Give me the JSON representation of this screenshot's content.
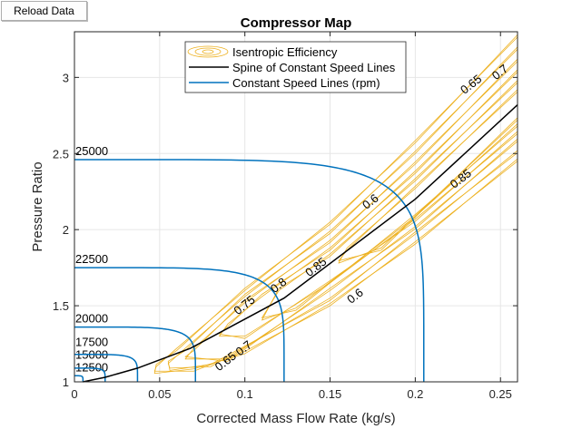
{
  "toolbar": {
    "reload_label": "Reload Data"
  },
  "chart_data": {
    "type": "line",
    "title": "Compressor Map",
    "xlabel": "Corrected Mass Flow Rate (kg/s)",
    "ylabel": "Pressure Ratio",
    "xlim": [
      0,
      0.26
    ],
    "ylim": [
      1,
      3.3
    ],
    "xticks": [
      0,
      0.05,
      0.1,
      0.15,
      0.2,
      0.25
    ],
    "xtick_labels": [
      "0",
      "0.05",
      "0.1",
      "0.15",
      "0.2",
      "0.25"
    ],
    "yticks": [
      1,
      1.5,
      2,
      2.5,
      3
    ],
    "ytick_labels": [
      "1",
      "1.5",
      "2",
      "2.5",
      "3"
    ],
    "grid": true,
    "legend": {
      "placement": "top-center",
      "entries": [
        "Isentropic Efficiency",
        "Spine of Constant Speed Lines",
        "Constant Speed Lines (rpm)"
      ]
    },
    "colors": {
      "efficiency": "#EDB120",
      "spine": "#000000",
      "speed": "#0072BD"
    },
    "speed_lines": [
      {
        "label": "12500",
        "pr_at_zero_flow": 1.04,
        "max_flow": 0.005
      },
      {
        "label": "15000",
        "pr_at_zero_flow": 1.09,
        "max_flow": 0.018
      },
      {
        "label": "17500",
        "pr_at_zero_flow": 1.18,
        "max_flow": 0.037
      },
      {
        "label": "20000",
        "pr_at_zero_flow": 1.36,
        "max_flow": 0.071
      },
      {
        "label": "22500",
        "pr_at_zero_flow": 1.75,
        "max_flow": 0.123
      },
      {
        "label": "25000",
        "pr_at_zero_flow": 2.46,
        "max_flow": 0.205
      }
    ],
    "spine": {
      "x": [
        0.005,
        0.018,
        0.037,
        0.068,
        0.123,
        0.2,
        0.26
      ],
      "y": [
        1.0,
        1.03,
        1.09,
        1.22,
        1.55,
        2.2,
        2.82
      ]
    },
    "efficiency_contours": [
      {
        "level": 0.6,
        "x": [
          0.26,
          0.2,
          0.15,
          0.1,
          0.06,
          0.048,
          0.047,
          0.07,
          0.1,
          0.15,
          0.2,
          0.26
        ],
        "y": [
          3.28,
          2.57,
          2.05,
          1.6,
          1.22,
          1.1,
          1.07,
          1.07,
          1.2,
          1.5,
          1.92,
          2.45
        ]
      },
      {
        "level": 0.65,
        "x": [
          0.26,
          0.2,
          0.15,
          0.1,
          0.065,
          0.055,
          0.056,
          0.08,
          0.15,
          0.2,
          0.26
        ],
        "y": [
          3.2,
          2.5,
          1.99,
          1.56,
          1.22,
          1.12,
          1.09,
          1.1,
          1.55,
          1.97,
          2.52
        ]
      },
      {
        "level": 0.7,
        "x": [
          0.26,
          0.2,
          0.15,
          0.1,
          0.07,
          0.065,
          0.09,
          0.15,
          0.2,
          0.26
        ],
        "y": [
          3.12,
          2.43,
          1.93,
          1.52,
          1.22,
          1.15,
          1.15,
          1.6,
          2.02,
          2.58
        ]
      },
      {
        "level": 0.75,
        "x": [
          0.26,
          0.2,
          0.15,
          0.11,
          0.09,
          0.085,
          0.1,
          0.15,
          0.2,
          0.26
        ],
        "y": [
          3.05,
          2.37,
          1.88,
          1.56,
          1.38,
          1.3,
          1.3,
          1.65,
          2.07,
          2.63
        ]
      },
      {
        "level": 0.8,
        "x": [
          0.26,
          0.2,
          0.15,
          0.12,
          0.11,
          0.13,
          0.2,
          0.26
        ],
        "y": [
          2.98,
          2.32,
          1.84,
          1.6,
          1.42,
          1.47,
          2.1,
          2.68
        ]
      },
      {
        "level": 0.85,
        "x": [
          0.26,
          0.2,
          0.16,
          0.155,
          0.18,
          0.26
        ],
        "y": [
          2.92,
          2.27,
          1.88,
          1.78,
          1.88,
          2.72
        ]
      }
    ],
    "contour_labels": [
      {
        "text": "0.6",
        "x": 0.174,
        "y": 2.18
      },
      {
        "text": "0.65",
        "x": 0.233,
        "y": 2.95
      },
      {
        "text": "0.7",
        "x": 0.25,
        "y": 3.03
      },
      {
        "text": "0.75",
        "x": 0.1,
        "y": 1.5
      },
      {
        "text": "0.8",
        "x": 0.12,
        "y": 1.63
      },
      {
        "text": "0.85",
        "x": 0.142,
        "y": 1.75
      },
      {
        "text": "0.85",
        "x": 0.227,
        "y": 2.33
      },
      {
        "text": "0.6",
        "x": 0.165,
        "y": 1.56
      },
      {
        "text": "0.65",
        "x": 0.089,
        "y": 1.13
      },
      {
        "text": "0.7",
        "x": 0.092,
        "y": 1.15
      }
    ]
  }
}
